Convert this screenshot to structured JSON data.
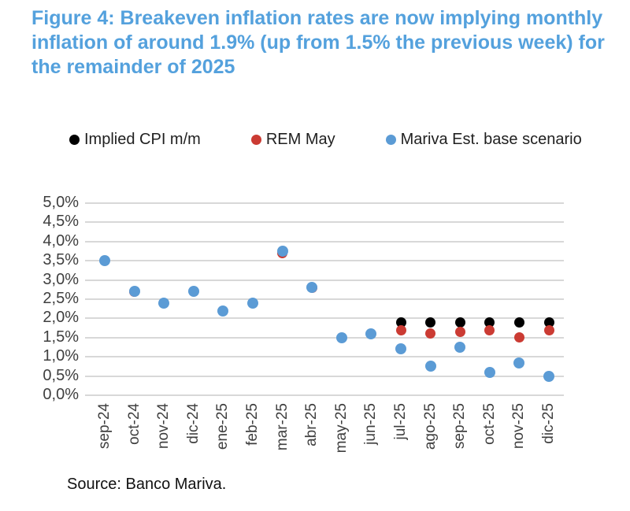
{
  "title": {
    "text": "Figure 4: Breakeven inflation rates are now implying monthly inflation of around 1.9% (up from 1.5% the previous week) for the remainder of 2025"
  },
  "legend": {
    "items": [
      {
        "label": "Implied CPI m/m",
        "color": "#000000",
        "marker": "black-dot-icon"
      },
      {
        "label": "REM May",
        "color": "#CB3B33",
        "marker": "red-dot-icon"
      },
      {
        "label": "Mariva Est. base scenario",
        "color": "#5B9BD5",
        "marker": "blue-dot-icon"
      }
    ]
  },
  "chart_data": {
    "type": "scatter",
    "categories": [
      "sep-24",
      "oct-24",
      "nov-24",
      "dic-24",
      "ene-25",
      "feb-25",
      "mar-25",
      "abr-25",
      "may-25",
      "jun-25",
      "jul-25",
      "ago-25",
      "sep-25",
      "oct-25",
      "nov-25",
      "dic-25"
    ],
    "y_tick_labels": [
      "5,0%",
      "4,5%",
      "4,0%",
      "3,5%",
      "3,0%",
      "2,5%",
      "2,0%",
      "1,5%",
      "1,0%",
      "0,5%",
      "0,0%"
    ],
    "y_tick_values": [
      5.0,
      4.5,
      4.0,
      3.5,
      3.0,
      2.5,
      2.0,
      1.5,
      1.0,
      0.5,
      0.0
    ],
    "ylim": [
      0,
      5
    ],
    "grid": "horizontal",
    "legend_position": "top",
    "xlabel": "",
    "ylabel": "",
    "series": [
      {
        "name": "Implied CPI m/m",
        "color": "#000000",
        "values": [
          null,
          null,
          null,
          null,
          null,
          null,
          null,
          null,
          null,
          null,
          1.9,
          1.9,
          1.9,
          1.9,
          1.9,
          1.9
        ]
      },
      {
        "name": "REM May",
        "color": "#CB3B33",
        "values": [
          null,
          2.7,
          null,
          null,
          null,
          null,
          3.7,
          2.8,
          null,
          null,
          1.7,
          1.6,
          1.65,
          1.7,
          1.5,
          1.7
        ]
      },
      {
        "name": "Mariva Est. base scenario",
        "color": "#5B9BD5",
        "values": [
          3.5,
          2.7,
          2.4,
          2.7,
          2.2,
          2.4,
          3.75,
          2.8,
          1.5,
          1.6,
          1.2,
          0.75,
          1.25,
          0.6,
          0.85,
          0.5
        ]
      }
    ]
  },
  "source": {
    "text": "Source: Banco Mariva."
  },
  "colors": {
    "title": "#54A1DD",
    "grid": "#D8D8D8",
    "axis_text": "#3F3F3F",
    "legend_text": "#1F1F1F",
    "background": "#FFFFFF"
  }
}
